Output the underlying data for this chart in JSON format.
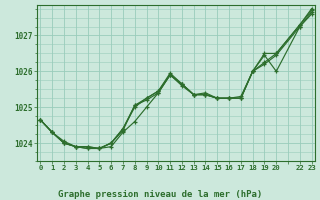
{
  "bg_color": "#cce8dc",
  "grid_color": "#99ccbb",
  "line_color": "#2d6e2d",
  "title": "Graphe pression niveau de la mer (hPa)",
  "yticks": [
    1024,
    1025,
    1026,
    1027
  ],
  "ylim": [
    1023.5,
    1027.85
  ],
  "xlim": [
    -0.3,
    23.3
  ],
  "xtick_labels": [
    "0",
    "1",
    "2",
    "3",
    "4",
    "5",
    "6",
    "7",
    "8",
    "9",
    "10",
    "11",
    "12",
    "13",
    "14",
    "15",
    "16",
    "17",
    "18",
    "19",
    "20",
    "",
    "22",
    "23"
  ],
  "line1_x": [
    0,
    1,
    2,
    3,
    4,
    5,
    6,
    7,
    8,
    9,
    10,
    11,
    12,
    13,
    14,
    15,
    16,
    17,
    18,
    19,
    20,
    22,
    23
  ],
  "line1_y": [
    1024.65,
    1024.3,
    1024.0,
    1023.9,
    1023.9,
    1023.85,
    1023.9,
    1024.3,
    1024.6,
    1025.0,
    1025.4,
    1025.9,
    1025.65,
    1025.35,
    1025.4,
    1025.25,
    1025.25,
    1025.3,
    1026.0,
    1026.45,
    1026.0,
    1027.25,
    1027.6
  ],
  "line2_x": [
    0,
    1,
    2,
    3,
    4,
    5,
    6,
    7,
    8,
    9,
    10,
    11,
    12,
    13,
    14,
    15,
    16,
    17,
    18,
    19,
    20,
    22,
    23
  ],
  "line2_y": [
    1024.65,
    1024.3,
    1024.0,
    1023.9,
    1023.9,
    1023.85,
    1024.0,
    1024.35,
    1025.05,
    1025.2,
    1025.4,
    1025.9,
    1025.6,
    1025.35,
    1025.35,
    1025.25,
    1025.25,
    1025.25,
    1026.0,
    1026.2,
    1026.45,
    1027.25,
    1027.65
  ],
  "line3_x": [
    0,
    1,
    2,
    3,
    4,
    5,
    6,
    7,
    8,
    9,
    10,
    11,
    12,
    13,
    14,
    15,
    16,
    17,
    18,
    19,
    20,
    22,
    23
  ],
  "line3_y": [
    1024.65,
    1024.3,
    1024.05,
    1023.9,
    1023.85,
    1023.85,
    1024.0,
    1024.4,
    1025.0,
    1025.25,
    1025.45,
    1025.95,
    1025.65,
    1025.35,
    1025.35,
    1025.25,
    1025.25,
    1025.25,
    1026.0,
    1026.25,
    1026.5,
    1027.3,
    1027.7
  ],
  "line4_x": [
    0,
    1,
    2,
    3,
    4,
    5,
    6,
    7,
    8,
    9,
    10,
    11,
    12,
    13,
    14,
    15,
    16,
    17,
    18,
    19,
    20,
    22,
    23
  ],
  "line4_y": [
    1024.65,
    1024.3,
    1024.0,
    1023.9,
    1023.85,
    1023.85,
    1024.0,
    1024.4,
    1025.05,
    1025.25,
    1025.45,
    1025.9,
    1025.65,
    1025.35,
    1025.35,
    1025.25,
    1025.25,
    1025.25,
    1026.0,
    1026.5,
    1026.5,
    1027.3,
    1027.75
  ]
}
